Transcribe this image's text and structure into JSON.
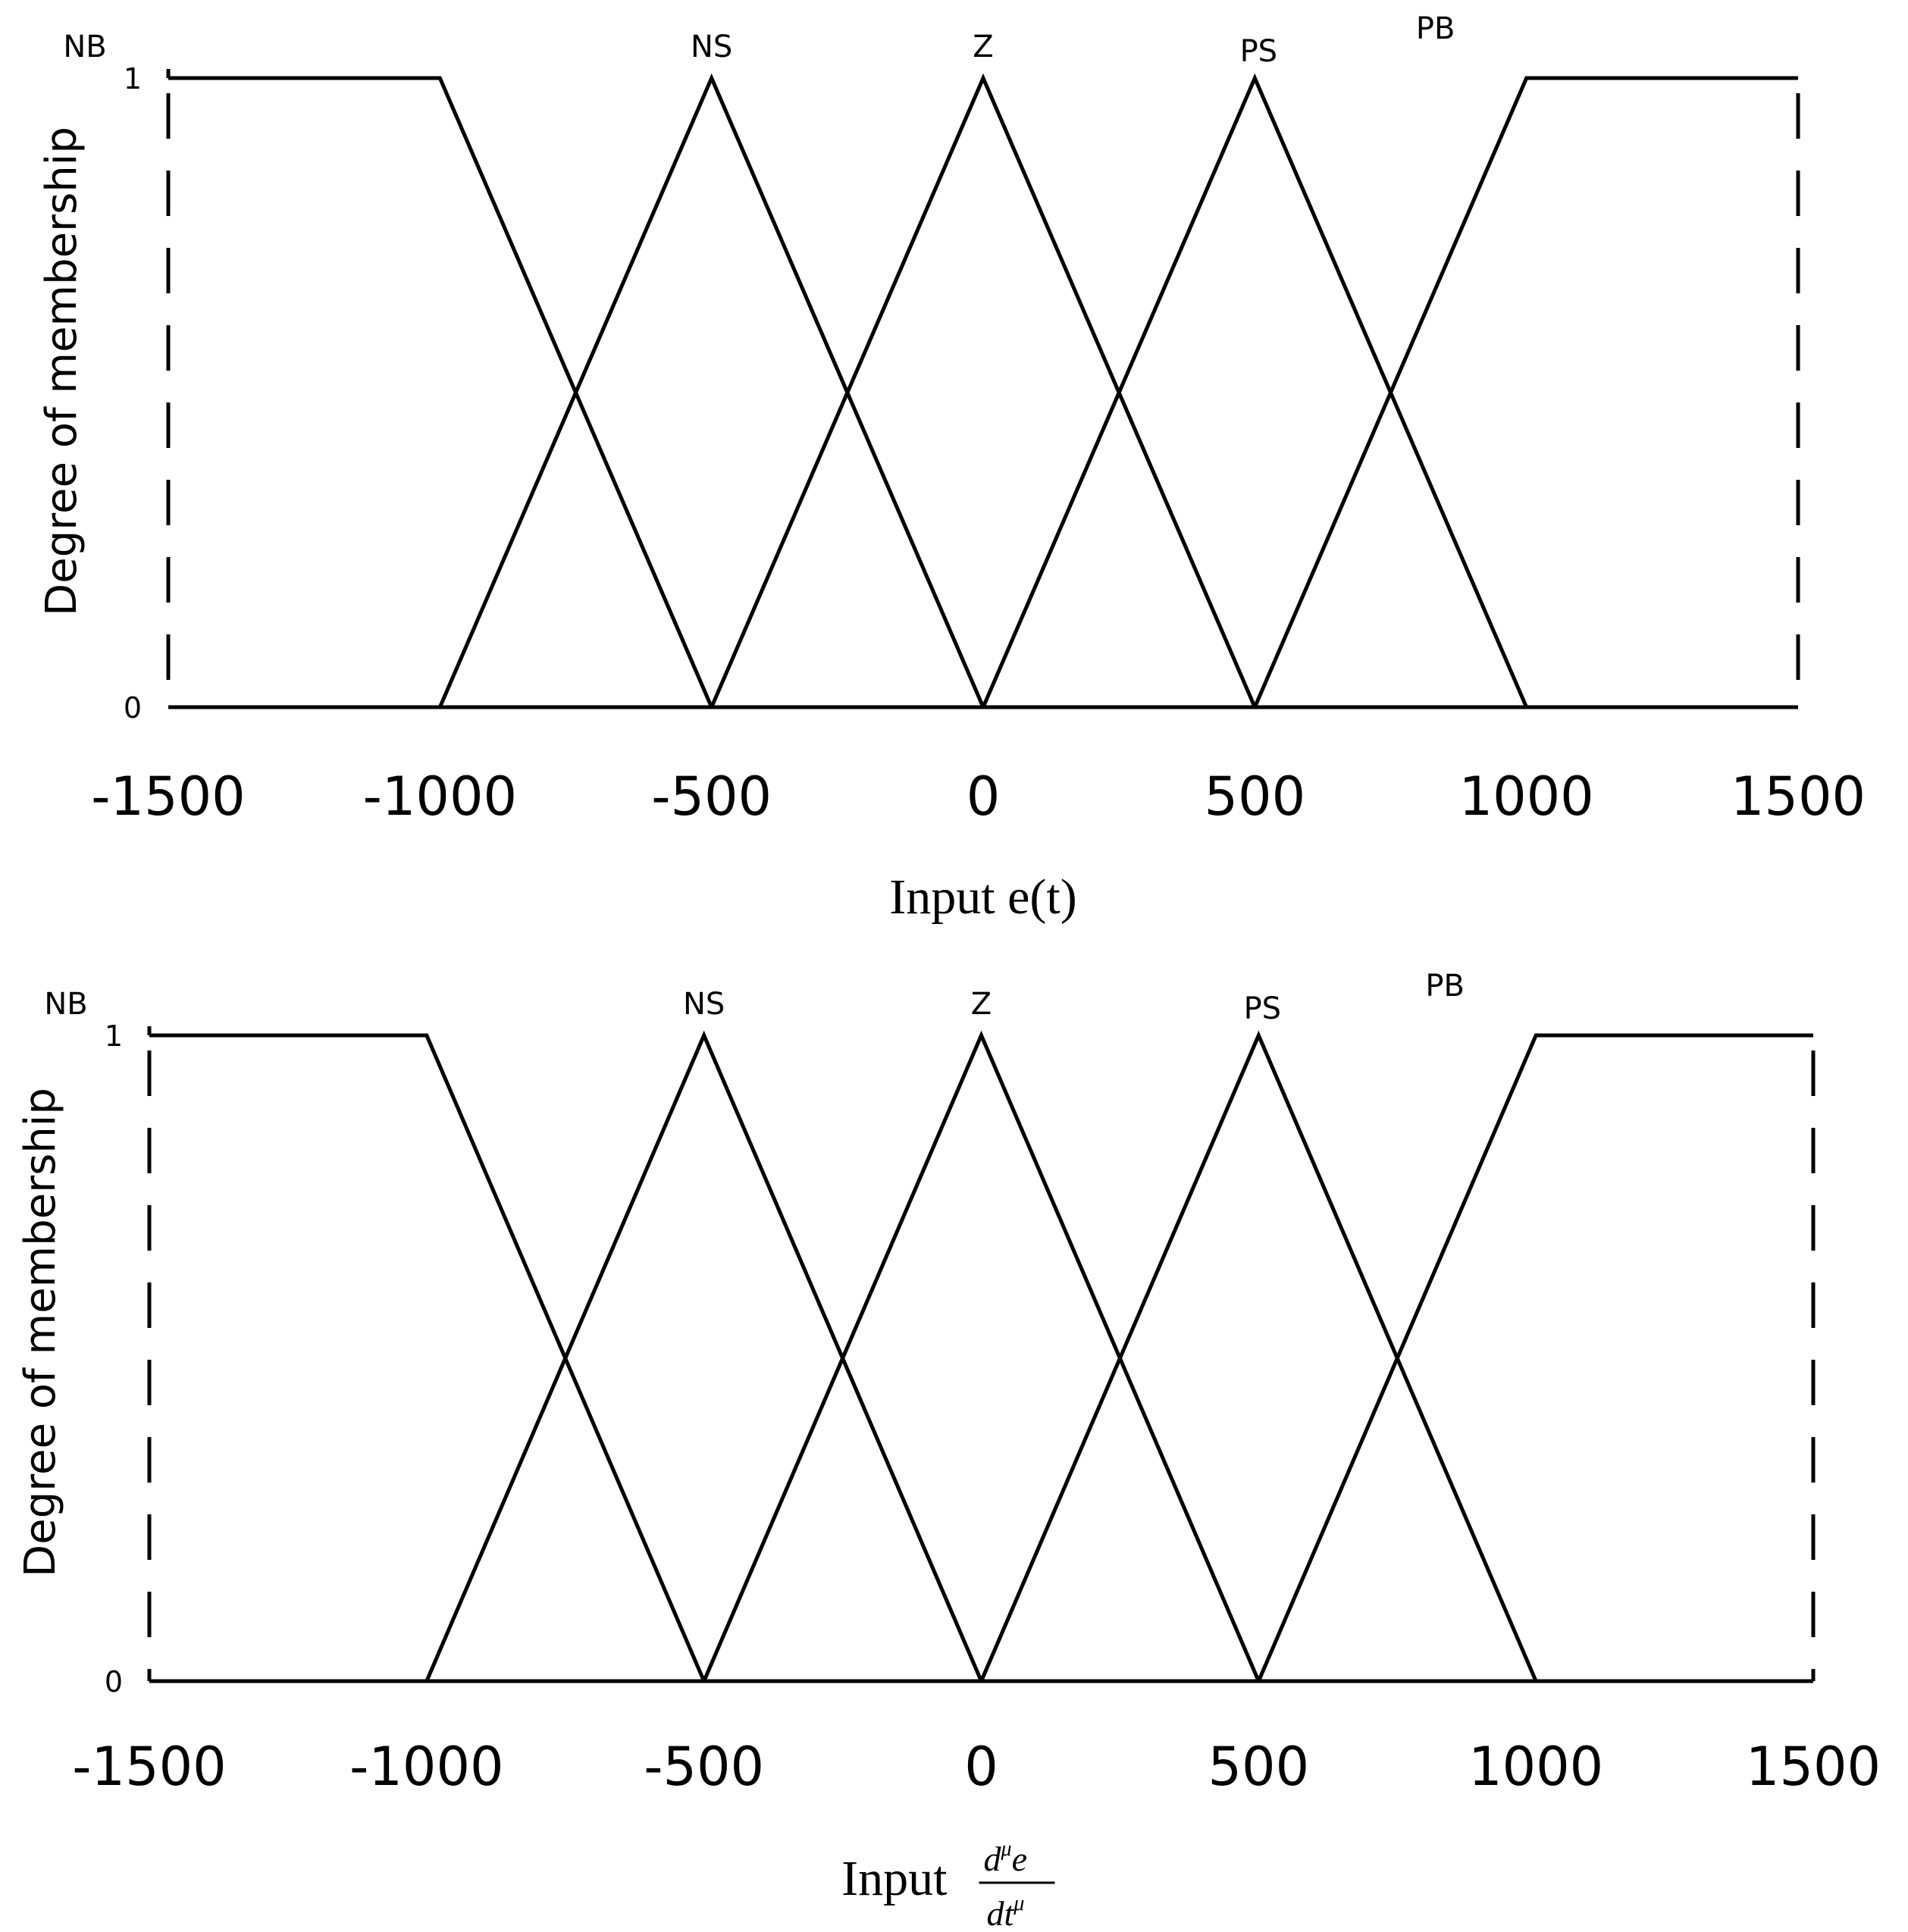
{
  "chart_data": [
    {
      "type": "line",
      "title": "",
      "xlabel": "Input e(t)",
      "ylabel": "Degree of membership",
      "xlim": [
        -1500,
        1500
      ],
      "ylim": [
        0,
        1
      ],
      "x_ticks": [
        "-1500",
        "-1000",
        "-500",
        "0",
        "500",
        "1000",
        "1500"
      ],
      "y_ticks": [
        "0",
        "1"
      ],
      "grid": false,
      "series": [
        {
          "name": "NB",
          "x": [
            -1500,
            -1000,
            -500
          ],
          "y": [
            1,
            1,
            0
          ]
        },
        {
          "name": "NS",
          "x": [
            -1000,
            -500,
            0
          ],
          "y": [
            0,
            1,
            0
          ]
        },
        {
          "name": "Z",
          "x": [
            -500,
            0,
            500
          ],
          "y": [
            0,
            1,
            0
          ]
        },
        {
          "name": "PS",
          "x": [
            0,
            500,
            1000
          ],
          "y": [
            0,
            1,
            0
          ]
        },
        {
          "name": "PB",
          "x": [
            500,
            1000,
            1500
          ],
          "y": [
            0,
            1,
            1
          ]
        }
      ]
    },
    {
      "type": "line",
      "title": "",
      "xlabel": {
        "prefix": "Input",
        "numerator": "d",
        "numerator_sup": "μ",
        "numerator_tail": "e",
        "denominator": "dt",
        "denominator_sup": "μ"
      },
      "ylabel": "Degree of membership",
      "xlim": [
        -1500,
        1500
      ],
      "ylim": [
        0,
        1
      ],
      "x_ticks": [
        "-1500",
        "-1000",
        "-500",
        "0",
        "500",
        "1000",
        "1500"
      ],
      "y_ticks": [
        "0",
        "1"
      ],
      "grid": false,
      "series": [
        {
          "name": "NB",
          "x": [
            -1500,
            -1000,
            -500
          ],
          "y": [
            1,
            1,
            0
          ]
        },
        {
          "name": "NS",
          "x": [
            -1000,
            -500,
            0
          ],
          "y": [
            0,
            1,
            0
          ]
        },
        {
          "name": "Z",
          "x": [
            -500,
            0,
            500
          ],
          "y": [
            0,
            1,
            0
          ]
        },
        {
          "name": "PS",
          "x": [
            0,
            500,
            1000
          ],
          "y": [
            0,
            1,
            0
          ]
        },
        {
          "name": "PB",
          "x": [
            500,
            1000,
            1500
          ],
          "y": [
            0,
            1,
            1
          ]
        }
      ]
    }
  ]
}
